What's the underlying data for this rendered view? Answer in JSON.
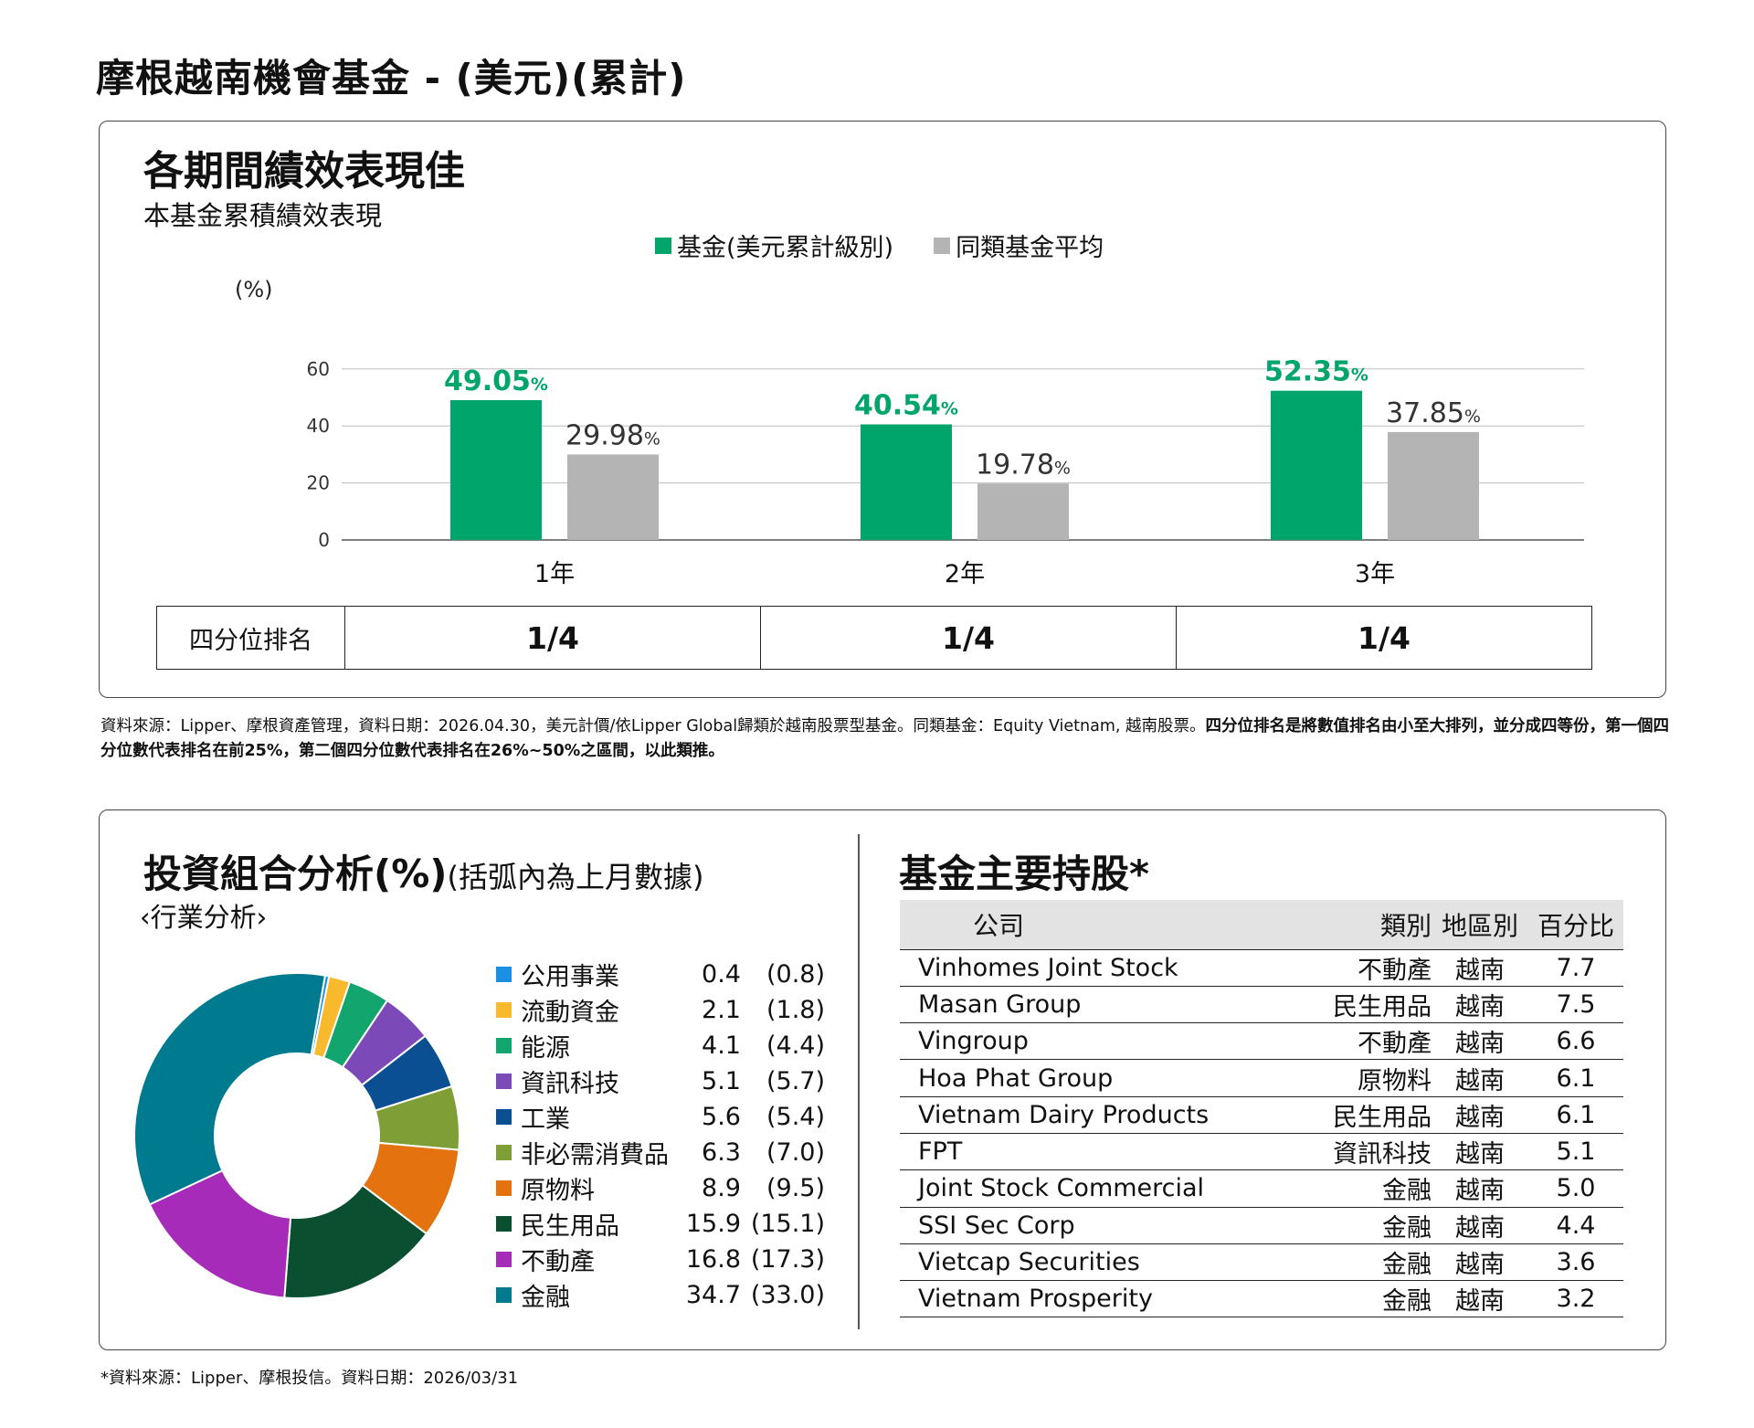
{
  "title": "摩根越南機會基金 - (美元)(累計)",
  "performance": {
    "heading": "各期間績效表現佳",
    "subheading": "本基金累積績效表現",
    "quartile_label": "四分位排名",
    "quartiles": [
      "1/4",
      "1/4",
      "1/4"
    ]
  },
  "chart_data": {
    "type": "bar",
    "categories": [
      "1年",
      "2年",
      "3年"
    ],
    "series": [
      {
        "name": "基金(美元累計級別)",
        "values": [
          49.05,
          40.54,
          52.35
        ],
        "color": "#00a56b",
        "labels": [
          "49.05",
          "40.54",
          "52.35"
        ]
      },
      {
        "name": "同類基金平均",
        "values": [
          29.98,
          19.78,
          37.85
        ],
        "color": "#b4b4b4",
        "labels": [
          "29.98",
          "19.78",
          "37.85"
        ]
      }
    ],
    "ylabel": "(%)",
    "ylim": [
      0,
      60
    ],
    "yticks": [
      "0",
      "20",
      "40",
      "60"
    ],
    "value_suffix": "%",
    "grid": true,
    "legend": "top-center"
  },
  "note": {
    "normal": "資料來源：Lipper、摩根資產管理，資料日期：2026.04.30，美元計價/依Lipper Global歸類於越南股票型基金。同類基金：Equity Vietnam, 越南股票。",
    "bold": "四分位排名是將數值排名由小至大排列，並分成四等份，第一個四分位數代表排名在前25%，第二個四分位數代表排名在26%~50%之區間，以此類推。"
  },
  "portfolio": {
    "heading": "投資組合分析(%)",
    "heading_sub": "(括弧內為上月數據)",
    "subheading": "‹行業分析›",
    "sectors": [
      {
        "name": "公用事業",
        "value": "0.4",
        "prev": "(0.8)",
        "color": "#1a8fe3"
      },
      {
        "name": "流動資金",
        "value": "2.1",
        "prev": "(1.8)",
        "color": "#f9b92d"
      },
      {
        "name": "能源",
        "value": "4.1",
        "prev": "(4.4)",
        "color": "#13a56e"
      },
      {
        "name": "資訊科技",
        "value": "5.1",
        "prev": "(5.7)",
        "color": "#7c4ab8"
      },
      {
        "name": "工業",
        "value": "5.6",
        "prev": "(5.4)",
        "color": "#0a4f91"
      },
      {
        "name": "非必需消費品",
        "value": "6.3",
        "prev": "(7.0)",
        "color": "#7f9e36"
      },
      {
        "name": "原物料",
        "value": "8.9",
        "prev": "(9.5)",
        "color": "#e4720f"
      },
      {
        "name": "民生用品",
        "value": "15.9",
        "prev": "(15.1)",
        "color": "#0b4f31"
      },
      {
        "name": "不動產",
        "value": "16.8",
        "prev": "(17.3)",
        "color": "#a62bb8"
      },
      {
        "name": "金融",
        "value": "34.7",
        "prev": "(33.0)",
        "color": "#007a8f"
      }
    ]
  },
  "holdings": {
    "heading": "基金主要持股*",
    "columns": [
      "公司",
      "類別",
      "地區別",
      "百分比"
    ],
    "rows": [
      [
        "Vinhomes Joint Stock",
        "不動產",
        "越南",
        "7.7"
      ],
      [
        "Masan Group",
        "民生用品",
        "越南",
        "7.5"
      ],
      [
        "Vingroup",
        "不動產",
        "越南",
        "6.6"
      ],
      [
        "Hoa Phat Group",
        "原物料",
        "越南",
        "6.1"
      ],
      [
        "Vietnam Dairy Products",
        "民生用品",
        "越南",
        "6.1"
      ],
      [
        "FPT",
        "資訊科技",
        "越南",
        "5.1"
      ],
      [
        "Joint Stock Commercial",
        "金融",
        "越南",
        "5.0"
      ],
      [
        "SSI Sec Corp",
        "金融",
        "越南",
        "4.4"
      ],
      [
        "Vietcap Securities",
        "金融",
        "越南",
        "3.6"
      ],
      [
        "Vietnam Prosperity",
        "金融",
        "越南",
        "3.2"
      ]
    ]
  },
  "footnote": "*資料來源：Lipper、摩根投信。資料日期：2026/03/31"
}
